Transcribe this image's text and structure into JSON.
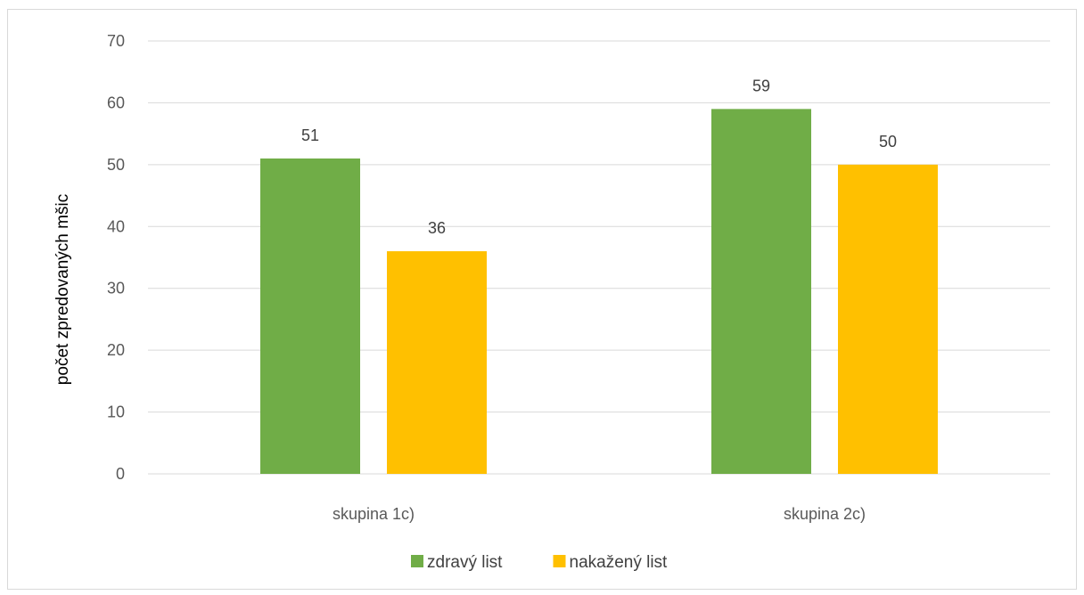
{
  "chart_data": {
    "type": "bar",
    "title": "",
    "xlabel": "",
    "ylabel": "počet zpredovaných mšic",
    "ylim": [
      0,
      70
    ],
    "yticks": [
      0,
      10,
      20,
      30,
      40,
      50,
      60,
      70
    ],
    "grid": true,
    "legend_position": "bottom",
    "categories": [
      "skupina 1c)",
      "skupina 2c)"
    ],
    "series": [
      {
        "name": "zdravý list",
        "color": "#70ad47",
        "values": [
          51,
          59
        ]
      },
      {
        "name": "nakažený list",
        "color": "#ffc000",
        "values": [
          36,
          50
        ]
      }
    ]
  }
}
